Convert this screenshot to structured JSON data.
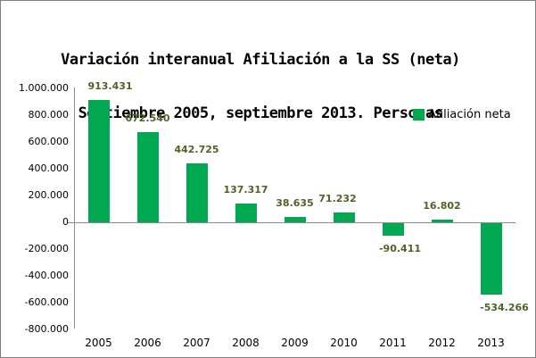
{
  "title": {
    "line1": "Variación interanual Afiliación a la SS (neta)",
    "line2": "Septiembre 2005, septiembre 2013. Personas"
  },
  "legend": {
    "label": "Afiliación neta"
  },
  "colors": {
    "bar": "#00A852",
    "data_label": "#4F6228",
    "axis_line": "#8C8C8C",
    "border": "#808080",
    "text": "#000000"
  },
  "chart_data": {
    "type": "bar",
    "title": "Variación interanual Afiliación a la SS (neta) Septiembre 2005, septiembre 2013. Personas",
    "series_name": "Afiliación neta",
    "categories": [
      "2005",
      "2006",
      "2007",
      "2008",
      "2009",
      "2010",
      "2011",
      "2012",
      "2013"
    ],
    "values": [
      913431,
      672540,
      442725,
      137317,
      38635,
      71232,
      -90411,
      16802,
      -534266
    ],
    "value_labels": [
      "913.431",
      "672.540",
      "442.725",
      "137.317",
      "38.635",
      "71.232",
      "-90.411",
      "16.802",
      "-534.266"
    ],
    "ylim": [
      -800000,
      1000000
    ],
    "ytick_step": 200000,
    "ytick_values": [
      1000000,
      800000,
      600000,
      400000,
      200000,
      0,
      -200000,
      -400000,
      -600000,
      -800000
    ],
    "ytick_labels": [
      "1.000.000",
      "800.000",
      "600.000",
      "400.000",
      "200.000",
      "0",
      "-200.000",
      "-400.000",
      "-600.000",
      "-800.000"
    ],
    "grid": false,
    "legend_position": "top-right",
    "xlabel": "",
    "ylabel": ""
  }
}
